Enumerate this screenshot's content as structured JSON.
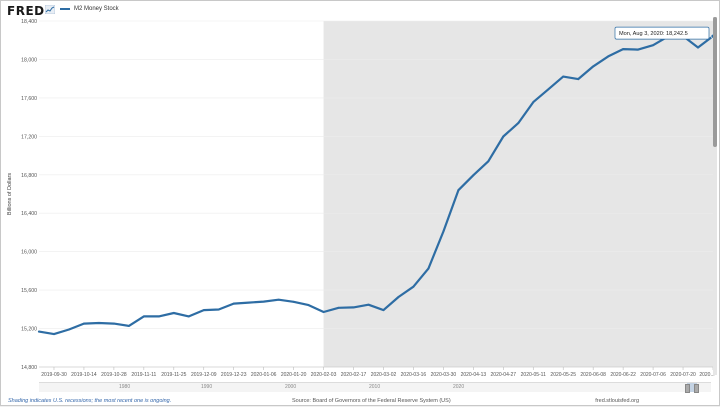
{
  "header": {
    "logo_text": "FRED",
    "legend_label": "M2 Money Stock",
    "series_color": "#2e6da4"
  },
  "chart_data": {
    "type": "line",
    "title": "",
    "ylabel": "Billions of Dollars",
    "ylim": [
      14800,
      18400
    ],
    "yticks": [
      14800,
      15200,
      15600,
      16000,
      16400,
      16800,
      17200,
      17600,
      18000,
      18400
    ],
    "ytick_labels": [
      "14,800",
      "15,200",
      "15,600",
      "16,000",
      "16,400",
      "16,800",
      "17,200",
      "17,600",
      "18,000",
      "18,400"
    ],
    "xlim": [
      "2019-09-23",
      "2020-08-03"
    ],
    "xticks": [
      "2019-09-30",
      "2019-10-14",
      "2019-10-28",
      "2019-11-11",
      "2019-11-25",
      "2019-12-09",
      "2019-12-23",
      "2020-01-06",
      "2020-01-20",
      "2020-02-03",
      "2020-02-17",
      "2020-03-02",
      "2020-03-16",
      "2020-03-30",
      "2020-04-13",
      "2020-04-27",
      "2020-05-11",
      "2020-05-25",
      "2020-06-08",
      "2020-06-22",
      "2020-07-06",
      "2020-07-20",
      "2020-08-03"
    ],
    "xtick_labels": [
      "2019-09-30",
      "2019-10-14",
      "2019-10-28",
      "2019-11-11",
      "2019-11-25",
      "2019-12-09",
      "2019-12-23",
      "2020-01-06",
      "2020-01-20",
      "2020-02-03",
      "2020-02-17",
      "2020-03-02",
      "2020-03-16",
      "2020-03-30",
      "2020-04-13",
      "2020-04-27",
      "2020-05-11",
      "2020-05-25",
      "2020-06-08",
      "2020-06-22",
      "2020-07-06",
      "2020-07-20",
      "2020..."
    ],
    "shading": {
      "from": "2020-02-03",
      "to": "2020-08-03",
      "color": "#e6e6e6"
    },
    "series": [
      {
        "name": "M2 Money Stock",
        "color": "#2e6da4",
        "x": [
          "2019-09-23",
          "2019-09-30",
          "2019-10-07",
          "2019-10-14",
          "2019-10-21",
          "2019-10-28",
          "2019-11-04",
          "2019-11-11",
          "2019-11-18",
          "2019-11-25",
          "2019-12-02",
          "2019-12-09",
          "2019-12-16",
          "2019-12-23",
          "2019-12-30",
          "2020-01-06",
          "2020-01-13",
          "2020-01-20",
          "2020-01-27",
          "2020-02-03",
          "2020-02-10",
          "2020-02-17",
          "2020-02-24",
          "2020-03-02",
          "2020-03-09",
          "2020-03-16",
          "2020-03-23",
          "2020-03-30",
          "2020-04-06",
          "2020-04-13",
          "2020-04-20",
          "2020-04-27",
          "2020-05-04",
          "2020-05-11",
          "2020-05-18",
          "2020-05-25",
          "2020-06-01",
          "2020-06-08",
          "2020-06-15",
          "2020-06-22",
          "2020-06-29",
          "2020-07-06",
          "2020-07-13",
          "2020-07-20",
          "2020-07-27",
          "2020-08-03"
        ],
        "values": [
          15168,
          15142,
          15190,
          15252,
          15258,
          15252,
          15228,
          15326,
          15326,
          15362,
          15326,
          15392,
          15398,
          15460,
          15470,
          15480,
          15500,
          15478,
          15444,
          15372,
          15416,
          15420,
          15448,
          15392,
          15528,
          15636,
          15824,
          16210,
          16640,
          16796,
          16940,
          17198,
          17338,
          17556,
          17688,
          17822,
          17796,
          17928,
          18032,
          18108,
          18102,
          18148,
          18240,
          18244,
          18124,
          18242.5
        ]
      }
    ],
    "tooltip": {
      "text": "Mon, Aug 3, 2020: 18,242.5"
    },
    "navigator_years": [
      "1980",
      "1990",
      "2000",
      "2010",
      "2020"
    ]
  },
  "footer": {
    "shading_note": "Shading indicates U.S. recessions; the most recent one is ongoing.",
    "source": "Source: Board of Governors of the Federal Reserve System (US)",
    "site": "fred.stlouisfed.org"
  }
}
